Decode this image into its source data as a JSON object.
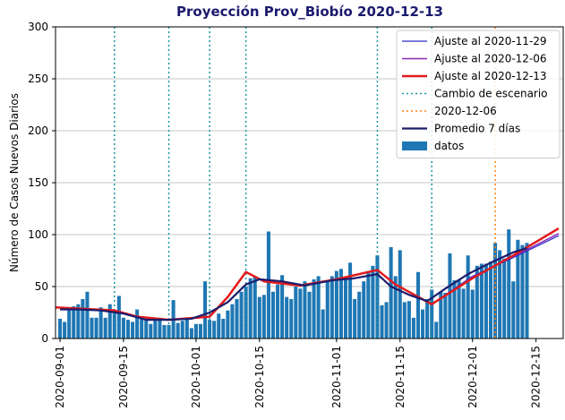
{
  "chart_data": {
    "type": "combo",
    "title": "Proyección Prov_Biobío 2020-12-13",
    "y_label": "Número de Casos Nuevos Diarios",
    "xlim": [
      "2020-08-31",
      "2020-12-21"
    ],
    "xticks": [
      "2020-09-01",
      "2020-09-15",
      "2020-10-01",
      "2020-10-15",
      "2020-11-01",
      "2020-11-15",
      "2020-12-01",
      "2020-12-15"
    ],
    "ylim": [
      0,
      300
    ],
    "yticks": [
      0,
      50,
      100,
      150,
      200,
      250,
      300
    ],
    "grid": true,
    "legend": "upper right",
    "series": [
      {
        "name": "Ajuste al 2020-11-29",
        "type": "line",
        "color": "#2b2bc8",
        "width": 1.2,
        "x": [
          "2020-08-31",
          "2020-09-13",
          "2020-09-18",
          "2020-09-25",
          "2020-10-04",
          "2020-10-08",
          "2020-10-12",
          "2020-10-16",
          "2020-10-24",
          "2020-11-01",
          "2020-11-10",
          "2020-11-14",
          "2020-11-22",
          "2020-12-01",
          "2020-12-10",
          "2020-12-20"
        ],
        "values": [
          30,
          27,
          21,
          18,
          21,
          40,
          64,
          55,
          51,
          57,
          66,
          52,
          33,
          60,
          78,
          99
        ]
      },
      {
        "name": "Ajuste al 2020-12-06",
        "type": "line",
        "color": "#8a2ab0",
        "width": 1.5,
        "x": [
          "2020-08-31",
          "2020-09-13",
          "2020-09-18",
          "2020-09-25",
          "2020-10-04",
          "2020-10-08",
          "2020-10-12",
          "2020-10-16",
          "2020-10-24",
          "2020-11-01",
          "2020-11-10",
          "2020-11-14",
          "2020-11-22",
          "2020-12-01",
          "2020-12-10",
          "2020-12-20"
        ],
        "values": [
          30,
          27,
          21,
          18,
          21,
          40,
          64,
          55,
          51,
          57,
          66,
          52,
          33,
          59,
          79,
          101
        ]
      },
      {
        "name": "Ajuste al 2020-12-13",
        "type": "line",
        "color": "#e31a1c",
        "width": 2.5,
        "x": [
          "2020-08-31",
          "2020-09-13",
          "2020-09-18",
          "2020-09-25",
          "2020-10-04",
          "2020-10-08",
          "2020-10-12",
          "2020-10-16",
          "2020-10-24",
          "2020-11-01",
          "2020-11-10",
          "2020-11-14",
          "2020-11-22",
          "2020-12-01",
          "2020-12-10",
          "2020-12-20"
        ],
        "values": [
          30,
          27,
          21,
          18,
          21,
          40,
          64,
          55,
          51,
          57,
          66,
          52,
          33,
          58,
          80,
          106
        ]
      },
      {
        "name": "Cambio de escenario",
        "type": "vline",
        "color": "#1b95a8",
        "style": "dotted",
        "x": [
          "2020-09-13",
          "2020-09-25",
          "2020-10-04",
          "2020-10-12",
          "2020-11-10",
          "2020-11-22"
        ]
      },
      {
        "name": "2020-12-06",
        "type": "vline",
        "color": "#ff7f0e",
        "style": "dotted",
        "x": [
          "2020-12-06"
        ]
      },
      {
        "name": "Promedio 7 días",
        "type": "line",
        "color": "#1c1c6b",
        "width": 2.2,
        "x": [
          "2020-09-01",
          "2020-09-05",
          "2020-09-10",
          "2020-09-15",
          "2020-09-20",
          "2020-09-25",
          "2020-09-30",
          "2020-10-04",
          "2020-10-08",
          "2020-10-12",
          "2020-10-15",
          "2020-10-20",
          "2020-10-25",
          "2020-10-31",
          "2020-11-05",
          "2020-11-10",
          "2020-11-13",
          "2020-11-17",
          "2020-11-21",
          "2020-11-25",
          "2020-11-30",
          "2020-12-05",
          "2020-12-10",
          "2020-12-13"
        ],
        "values": [
          28,
          28,
          27,
          24,
          18,
          18,
          19,
          25,
          35,
          52,
          57,
          55,
          51,
          56,
          58,
          62,
          50,
          42,
          36,
          48,
          62,
          73,
          83,
          87
        ]
      },
      {
        "name": "datos",
        "type": "bar",
        "color": "#1f77b4",
        "x": [
          "2020-09-01",
          "2020-09-02",
          "2020-09-03",
          "2020-09-04",
          "2020-09-05",
          "2020-09-06",
          "2020-09-07",
          "2020-09-08",
          "2020-09-09",
          "2020-09-10",
          "2020-09-11",
          "2020-09-12",
          "2020-09-13",
          "2020-09-14",
          "2020-09-15",
          "2020-09-16",
          "2020-09-17",
          "2020-09-18",
          "2020-09-19",
          "2020-09-20",
          "2020-09-21",
          "2020-09-22",
          "2020-09-23",
          "2020-09-24",
          "2020-09-25",
          "2020-09-26",
          "2020-09-27",
          "2020-09-28",
          "2020-09-29",
          "2020-09-30",
          "2020-10-01",
          "2020-10-02",
          "2020-10-03",
          "2020-10-04",
          "2020-10-05",
          "2020-10-06",
          "2020-10-07",
          "2020-10-08",
          "2020-10-09",
          "2020-10-10",
          "2020-10-11",
          "2020-10-12",
          "2020-10-13",
          "2020-10-14",
          "2020-10-15",
          "2020-10-16",
          "2020-10-17",
          "2020-10-18",
          "2020-10-19",
          "2020-10-20",
          "2020-10-21",
          "2020-10-22",
          "2020-10-23",
          "2020-10-24",
          "2020-10-25",
          "2020-10-26",
          "2020-10-27",
          "2020-10-28",
          "2020-10-29",
          "2020-10-30",
          "2020-10-31",
          "2020-11-01",
          "2020-11-02",
          "2020-11-03",
          "2020-11-04",
          "2020-11-05",
          "2020-11-06",
          "2020-11-07",
          "2020-11-08",
          "2020-11-09",
          "2020-11-10",
          "2020-11-11",
          "2020-11-12",
          "2020-11-13",
          "2020-11-14",
          "2020-11-15",
          "2020-11-16",
          "2020-11-17",
          "2020-11-18",
          "2020-11-19",
          "2020-11-20",
          "2020-11-21",
          "2020-11-22",
          "2020-11-23",
          "2020-11-24",
          "2020-11-25",
          "2020-11-26",
          "2020-11-27",
          "2020-11-28",
          "2020-11-29",
          "2020-11-30",
          "2020-12-01",
          "2020-12-02",
          "2020-12-03",
          "2020-12-04",
          "2020-12-05",
          "2020-12-06",
          "2020-12-07",
          "2020-12-08",
          "2020-12-09",
          "2020-12-10",
          "2020-12-11",
          "2020-12-12",
          "2020-12-13"
        ],
        "values": [
          19,
          16,
          28,
          31,
          33,
          38,
          45,
          20,
          20,
          30,
          20,
          33,
          27,
          41,
          20,
          18,
          16,
          28,
          19,
          18,
          14,
          20,
          20,
          13,
          13,
          37,
          15,
          17,
          19,
          10,
          14,
          14,
          55,
          18,
          17,
          24,
          19,
          27,
          33,
          38,
          45,
          50,
          58,
          60,
          40,
          42,
          103,
          45,
          52,
          61,
          40,
          38,
          50,
          48,
          55,
          45,
          57,
          60,
          28,
          55,
          60,
          65,
          67,
          58,
          73,
          38,
          45,
          55,
          65,
          70,
          80,
          32,
          35,
          88,
          60,
          85,
          35,
          36,
          20,
          64,
          28,
          38,
          47,
          16,
          45,
          44,
          82,
          56,
          57,
          48,
          80,
          47,
          70,
          72,
          72,
          74,
          92,
          85,
          77,
          105,
          55,
          95,
          90,
          92
        ]
      }
    ]
  }
}
